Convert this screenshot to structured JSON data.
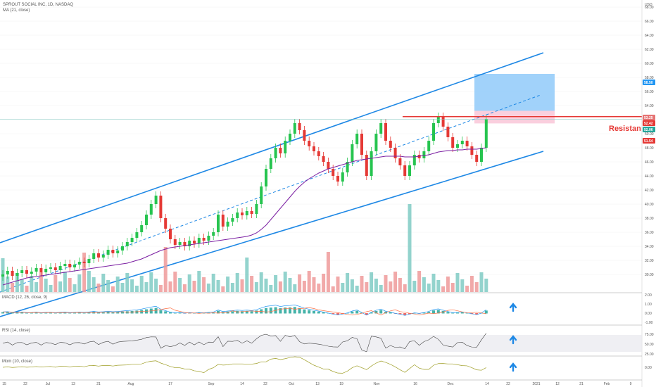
{
  "header": {
    "symbol_line": "SPROUT SOCIAL INC, 1D, NASDAQ",
    "indicator_line": "MA (21, close)"
  },
  "annotations": {
    "resistance_label": "Resistan"
  },
  "price_tags": [
    {
      "label": "58.50",
      "value": 58.5,
      "color": "#2196f3"
    },
    {
      "label": "53.25",
      "value": 53.25,
      "color": "#e57373"
    },
    {
      "label": "52.42",
      "value": 52.42,
      "color": "#e53935"
    },
    {
      "label": "52.06",
      "value": 52.06,
      "color": "#26a69a"
    },
    {
      "label": "51.54",
      "value": 51.54,
      "color": "#e53935"
    }
  ],
  "pane_titles": {
    "macd": "MACD (12, 26, close, 9)",
    "rsi": "RSI (14, close)",
    "mom": "Mom (10, close)"
  },
  "pane_ticks": {
    "macd": [
      "2.00",
      "1.00",
      "0.00",
      "-1.00"
    ],
    "rsi": [
      "75.00",
      "50.00",
      "25.00"
    ],
    "mom": [
      "0.00"
    ]
  },
  "colors": {
    "up": "#26c44f",
    "down": "#e53935",
    "channel": "#1e88e5",
    "ma": "#7b1fa2",
    "resistance": "#e53935",
    "target_box": "#90caf9",
    "arrow": "#1e88e5"
  },
  "chart_data": {
    "type": "candlestick",
    "series_name": "SPROUT SOCIAL INC, 1D, NASDAQ",
    "y_ticks": [
      30,
      32,
      34,
      36,
      38,
      40,
      42,
      44,
      46,
      48,
      50,
      52,
      54,
      56,
      58,
      60,
      62,
      64,
      66,
      68,
      70
    ],
    "y_tick_labels": [
      "30.00",
      "32.00",
      "34.00",
      "36.00",
      "38.00",
      "40.00",
      "42.00",
      "44.00",
      "46.00",
      "48.00",
      "50.00",
      "52.00",
      "54.00",
      "56.00",
      "58.00",
      "60.00",
      "62.00",
      "64.00",
      "66.00",
      "68.00",
      "70.00"
    ],
    "x_tick_labels": [
      "15",
      "22",
      "Jul",
      "13",
      "21",
      "Aug",
      "17",
      "Sep",
      "14",
      "22",
      "Oct",
      "13",
      "19",
      "Nov",
      "16",
      "Dec",
      "14",
      "22",
      "2021",
      "12",
      "21",
      "Feb",
      "9"
    ],
    "y_axis_unit": "USD",
    "close": [
      30.0,
      30.5,
      29.8,
      30.2,
      30.6,
      30.1,
      30.4,
      30.9,
      30.3,
      30.8,
      31.0,
      30.6,
      31.2,
      31.5,
      31.0,
      31.4,
      31.8,
      31.6,
      32.2,
      33.0,
      32.4,
      32.8,
      33.5,
      33.0,
      33.4,
      34.0,
      34.6,
      35.2,
      36.0,
      37.0,
      38.5,
      40.0,
      41.2,
      38.0,
      36.5,
      35.0,
      34.2,
      34.6,
      34.0,
      34.8,
      34.4,
      35.2,
      34.8,
      35.5,
      36.0,
      38.5,
      36.8,
      37.5,
      38.0,
      38.8,
      38.4,
      39.0,
      38.6,
      40.0,
      42.5,
      45.0,
      46.5,
      48.0,
      47.2,
      49.0,
      50.0,
      51.5,
      50.5,
      49.0,
      48.2,
      47.5,
      46.8,
      46.0,
      45.0,
      44.0,
      43.2,
      44.5,
      46.0,
      48.5,
      50.0,
      47.0,
      44.0,
      47.5,
      50.0,
      51.5,
      49.0,
      48.0,
      46.5,
      45.5,
      44.0,
      45.5,
      47.0,
      46.5,
      47.5,
      49.0,
      51.5,
      52.4,
      51.0,
      49.5,
      48.0,
      48.5,
      49.0,
      48.2,
      47.0,
      46.0,
      48.0,
      52.06
    ],
    "ma21": [
      28.5,
      28.7,
      28.9,
      29.1,
      29.3,
      29.5,
      29.6,
      29.7,
      29.8,
      29.9,
      30.0,
      30.1,
      30.2,
      30.3,
      30.4,
      30.5,
      30.6,
      30.7,
      30.8,
      30.9,
      31.0,
      31.1,
      31.2,
      31.3,
      31.4,
      31.5,
      31.6,
      31.8,
      32.0,
      32.2,
      32.5,
      32.8,
      33.1,
      33.4,
      33.6,
      33.8,
      33.9,
      34.0,
      34.1,
      34.2,
      34.3,
      34.4,
      34.5,
      34.6,
      34.7,
      34.8,
      34.9,
      35.0,
      35.1,
      35.2,
      35.3,
      35.4,
      35.6,
      35.9,
      36.4,
      37.0,
      37.8,
      38.6,
      39.4,
      40.2,
      41.0,
      41.8,
      42.5,
      43.1,
      43.6,
      44.0,
      44.4,
      44.7,
      45.0,
      45.2,
      45.4,
      45.6,
      45.8,
      46.0,
      46.2,
      46.3,
      46.4,
      46.5,
      46.6,
      46.7,
      46.8,
      46.8,
      46.8,
      46.8,
      46.7,
      46.7,
      46.7,
      46.8,
      46.9,
      47.0,
      47.2,
      47.4,
      47.5,
      47.6,
      47.6,
      47.7,
      47.7,
      47.8,
      47.8,
      47.8,
      47.9,
      48.0
    ],
    "resistance_level": 52.42,
    "target_box": {
      "low": 53.25,
      "high": 58.5
    },
    "channel_upper": {
      "from": 34.5,
      "to": 61.5
    },
    "channel_lower": {
      "from": 28.0,
      "to": 47.5
    },
    "channel_mid": {
      "from": 29.5,
      "to": 55.5
    }
  }
}
